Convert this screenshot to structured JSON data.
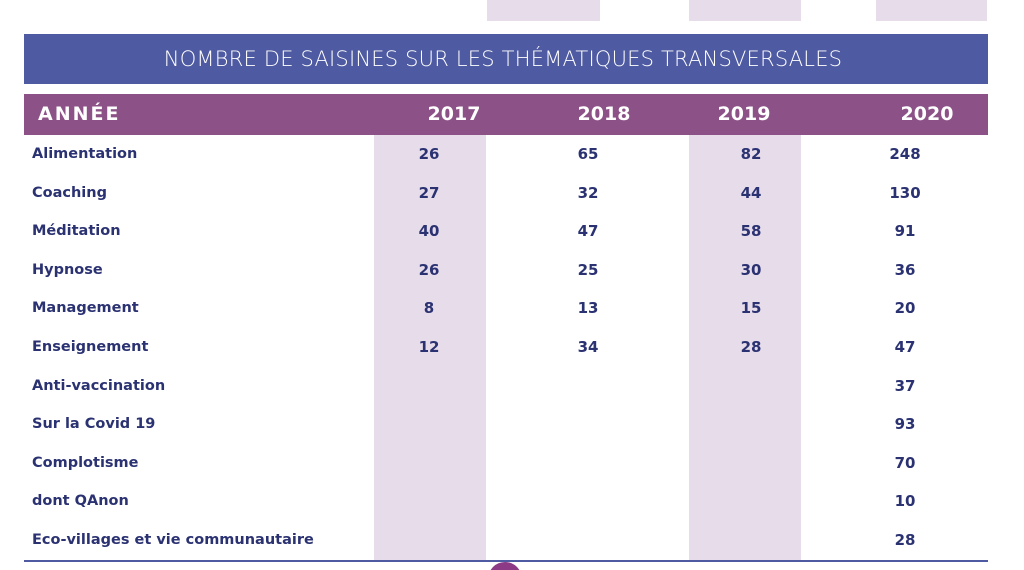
{
  "table": {
    "title": "NOMBRE DE SAISINES SUR LES THÉMATIQUES TRANSVERSALES",
    "header_label": "ANNÉE",
    "years": [
      "2017",
      "2018",
      "2019",
      "2020"
    ],
    "rows": [
      {
        "label": "Alimentation",
        "values": [
          "26",
          "65",
          "82",
          "248"
        ]
      },
      {
        "label": "Coaching",
        "values": [
          "27",
          "32",
          "44",
          "130"
        ]
      },
      {
        "label": "Méditation",
        "values": [
          "40",
          "47",
          "58",
          "91"
        ]
      },
      {
        "label": "Hypnose",
        "values": [
          "26",
          "25",
          "30",
          "36"
        ]
      },
      {
        "label": "Management",
        "values": [
          "8",
          "13",
          "15",
          "20"
        ]
      },
      {
        "label": "Enseignement",
        "values": [
          "12",
          "34",
          "28",
          "47"
        ]
      },
      {
        "label": "Anti-vaccination",
        "values": [
          "",
          "",
          "",
          "37"
        ]
      },
      {
        "label": "Sur la Covid 19",
        "values": [
          "",
          "",
          "",
          "93"
        ]
      },
      {
        "label": "Complotisme",
        "values": [
          "",
          "",
          "",
          "70"
        ]
      },
      {
        "label": "dont QAnon",
        "values": [
          "",
          "",
          "",
          "10"
        ]
      },
      {
        "label": "Eco-villages et vie communautaire",
        "values": [
          "",
          "",
          "",
          "28"
        ]
      }
    ]
  },
  "colors": {
    "title_bar": "#4e5aa1",
    "header_row": "#8c5287",
    "column_stripe": "#e7dcea",
    "row_text": "#2b3272"
  }
}
